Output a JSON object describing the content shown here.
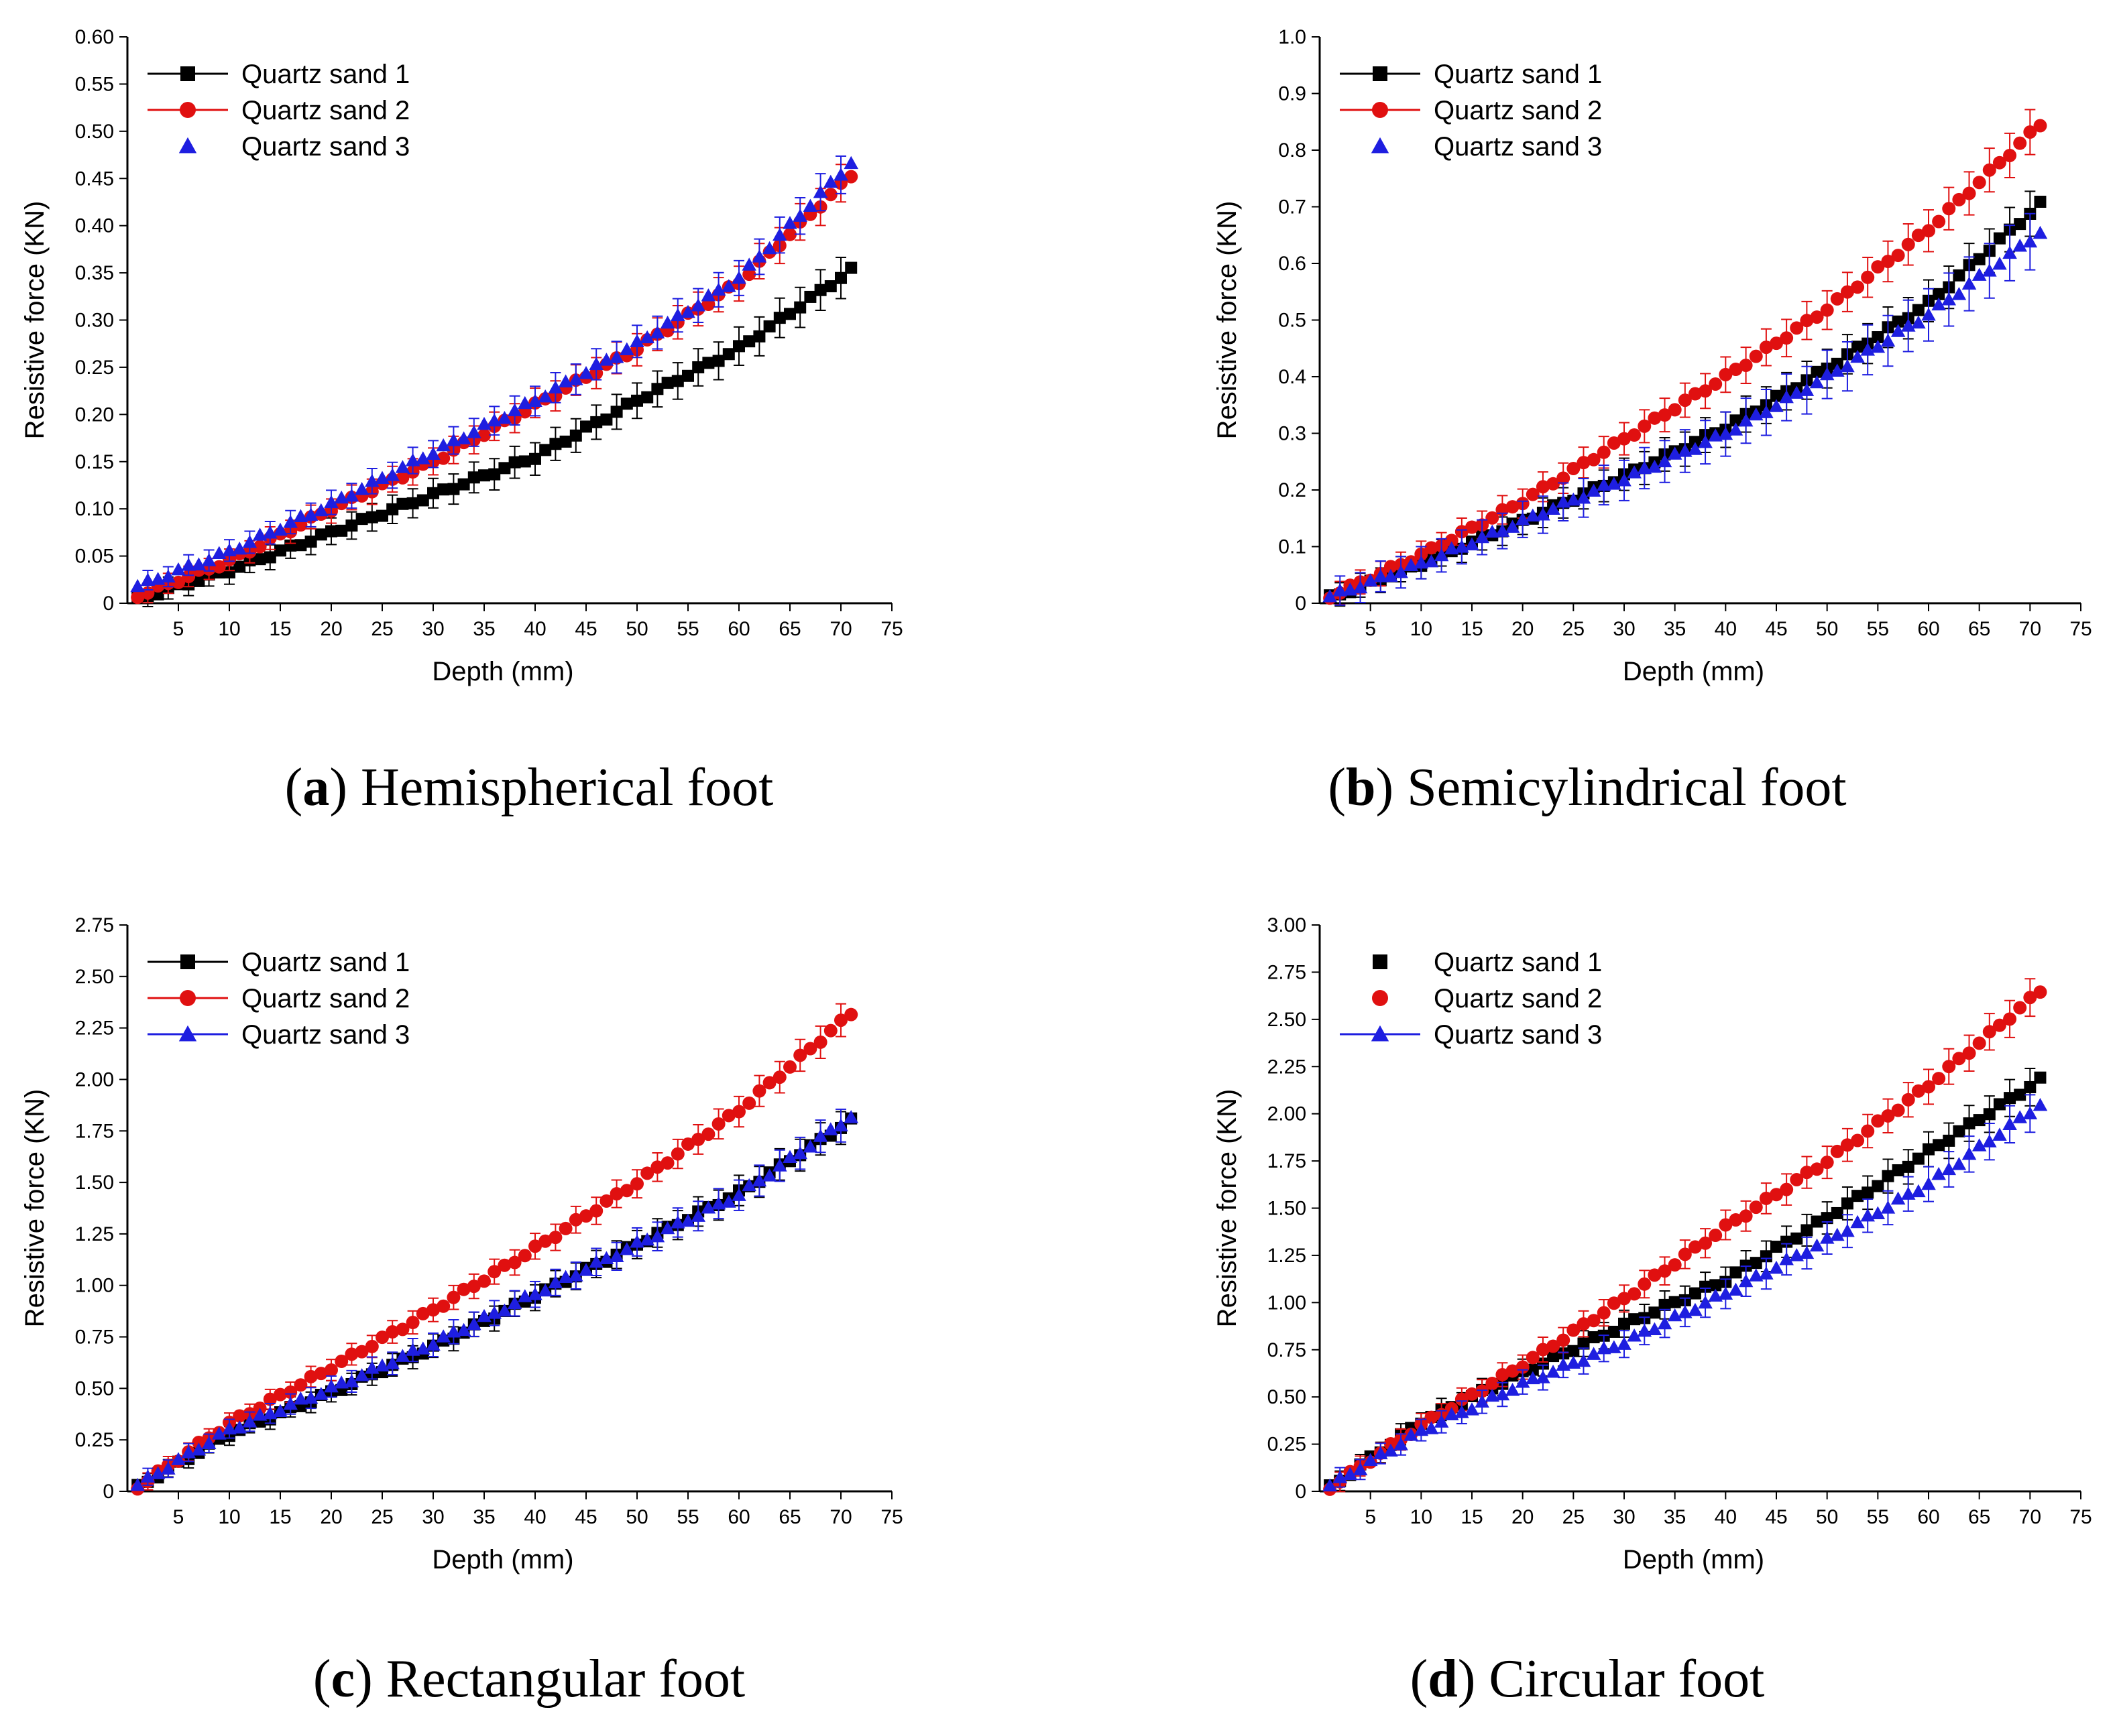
{
  "chart_data": [
    {
      "type": "scatter",
      "panel_letter": "a",
      "caption_text": "Hemispherical foot",
      "xlabel": "Depth (mm)",
      "ylabel": "Resistive force (KN)",
      "xlim": [
        0,
        75
      ],
      "ylim": [
        0,
        0.6
      ],
      "xticks": [
        5,
        10,
        15,
        20,
        25,
        30,
        35,
        40,
        45,
        50,
        55,
        60,
        65,
        70,
        75
      ],
      "xtick_labels": [
        "5",
        "10",
        "15",
        "20",
        "25",
        "30",
        "35",
        "40",
        "45",
        "50",
        "55",
        "60",
        "65",
        "70",
        "75"
      ],
      "yticks": [
        0,
        0.05,
        0.1,
        0.15,
        0.2,
        0.25,
        0.3,
        0.35,
        0.4,
        0.45,
        0.5,
        0.55,
        0.6
      ],
      "ytick_labels": [
        "0",
        "0.05",
        "0.10",
        "0.15",
        "0.20",
        "0.25",
        "0.30",
        "0.35",
        "0.40",
        "0.45",
        "0.50",
        "0.55",
        "0.60"
      ],
      "legend_position": "top-left",
      "x": [
        1,
        2,
        3,
        4,
        5,
        6,
        7,
        8,
        9,
        10,
        11,
        12,
        13,
        14,
        15,
        16,
        17,
        18,
        19,
        20,
        21,
        22,
        23,
        24,
        25,
        26,
        27,
        28,
        29,
        30,
        31,
        32,
        33,
        34,
        35,
        36,
        37,
        38,
        39,
        40,
        41,
        42,
        43,
        44,
        45,
        46,
        47,
        48,
        49,
        50,
        51,
        52,
        53,
        54,
        55,
        56,
        57,
        58,
        59,
        60,
        61,
        62,
        63,
        64,
        65,
        66,
        67,
        68,
        69,
        70,
        71
      ],
      "series": [
        {
          "name": "Quartz sand 1",
          "color": "#000000",
          "marker": "square",
          "legend_line": true,
          "anchors": [
            [
              1,
              0.005
            ],
            [
              10,
              0.035
            ],
            [
              20,
              0.075
            ],
            [
              30,
              0.115
            ],
            [
              40,
              0.155
            ],
            [
              50,
              0.215
            ],
            [
              60,
              0.27
            ],
            [
              71,
              0.353
            ]
          ],
          "error": 0.022
        },
        {
          "name": "Quartz sand 2",
          "color": "#e01010",
          "marker": "circle",
          "legend_line": true,
          "anchors": [
            [
              1,
              0.008
            ],
            [
              10,
              0.045
            ],
            [
              20,
              0.1
            ],
            [
              30,
              0.15
            ],
            [
              40,
              0.21
            ],
            [
              50,
              0.27
            ],
            [
              60,
              0.34
            ],
            [
              71,
              0.453
            ]
          ],
          "error": 0.02
        },
        {
          "name": "Quartz sand 3",
          "color": "#1e1ee0",
          "marker": "triangle",
          "legend_line": false,
          "anchors": [
            [
              1,
              0.018
            ],
            [
              10,
              0.055
            ],
            [
              20,
              0.105
            ],
            [
              30,
              0.16
            ],
            [
              40,
              0.215
            ],
            [
              50,
              0.275
            ],
            [
              60,
              0.345
            ],
            [
              71,
              0.467
            ]
          ],
          "error": 0.02
        }
      ]
    },
    {
      "type": "scatter",
      "panel_letter": "b",
      "caption_text": "Semicylindrical foot",
      "xlabel": "Depth (mm)",
      "ylabel": "Resistive force (KN)",
      "xlim": [
        0,
        75
      ],
      "ylim": [
        0,
        1.0
      ],
      "xticks": [
        5,
        10,
        15,
        20,
        25,
        30,
        35,
        40,
        45,
        50,
        55,
        60,
        65,
        70,
        75
      ],
      "xtick_labels": [
        "5",
        "10",
        "15",
        "20",
        "25",
        "30",
        "35",
        "40",
        "45",
        "50",
        "55",
        "60",
        "65",
        "70",
        "75"
      ],
      "yticks": [
        0,
        0.1,
        0.2,
        0.3,
        0.4,
        0.5,
        0.6,
        0.7,
        0.8,
        0.9,
        1.0
      ],
      "ytick_labels": [
        "0",
        "0.1",
        "0.2",
        "0.3",
        "0.4",
        "0.5",
        "0.6",
        "0.7",
        "0.8",
        "0.9",
        "1.0"
      ],
      "legend_position": "top-left",
      "x": [
        1,
        2,
        3,
        4,
        5,
        6,
        7,
        8,
        9,
        10,
        11,
        12,
        13,
        14,
        15,
        16,
        17,
        18,
        19,
        20,
        21,
        22,
        23,
        24,
        25,
        26,
        27,
        28,
        29,
        30,
        31,
        32,
        33,
        34,
        35,
        36,
        37,
        38,
        39,
        40,
        41,
        42,
        43,
        44,
        45,
        46,
        47,
        48,
        49,
        50,
        51,
        52,
        53,
        54,
        55,
        56,
        57,
        58,
        59,
        60,
        61,
        62,
        63,
        64,
        65,
        66,
        67,
        68,
        69,
        70,
        71
      ],
      "series": [
        {
          "name": "Quartz sand 1",
          "color": "#000000",
          "marker": "square",
          "legend_line": true,
          "anchors": [
            [
              1,
              0.01
            ],
            [
              10,
              0.07
            ],
            [
              20,
              0.145
            ],
            [
              30,
              0.225
            ],
            [
              40,
              0.31
            ],
            [
              50,
              0.415
            ],
            [
              60,
              0.53
            ],
            [
              71,
              0.705
            ]
          ],
          "error": 0.04
        },
        {
          "name": "Quartz sand 2",
          "color": "#e01010",
          "marker": "circle",
          "legend_line": true,
          "anchors": [
            [
              1,
              0.012
            ],
            [
              10,
              0.085
            ],
            [
              20,
              0.18
            ],
            [
              30,
              0.29
            ],
            [
              40,
              0.4
            ],
            [
              50,
              0.52
            ],
            [
              60,
              0.66
            ],
            [
              71,
              0.845
            ]
          ],
          "error": 0.04
        },
        {
          "name": "Quartz sand 3",
          "color": "#1e1ee0",
          "marker": "triangle",
          "legend_line": false,
          "anchors": [
            [
              1,
              0.012
            ],
            [
              10,
              0.07
            ],
            [
              20,
              0.145
            ],
            [
              30,
              0.22
            ],
            [
              40,
              0.3
            ],
            [
              50,
              0.4
            ],
            [
              60,
              0.51
            ],
            [
              71,
              0.655
            ]
          ],
          "error": 0.05
        }
      ]
    },
    {
      "type": "scatter",
      "panel_letter": "c",
      "caption_text": "Rectangular foot",
      "xlabel": "Depth (mm)",
      "ylabel": "Resistive force (KN)",
      "xlim": [
        0,
        75
      ],
      "ylim": [
        0,
        2.75
      ],
      "xticks": [
        5,
        10,
        15,
        20,
        25,
        30,
        35,
        40,
        45,
        50,
        55,
        60,
        65,
        70,
        75
      ],
      "xtick_labels": [
        "5",
        "10",
        "15",
        "20",
        "25",
        "30",
        "35",
        "40",
        "45",
        "50",
        "55",
        "60",
        "65",
        "70",
        "75"
      ],
      "yticks": [
        0,
        0.25,
        0.5,
        0.75,
        1.0,
        1.25,
        1.5,
        1.75,
        2.0,
        2.25,
        2.5,
        2.75
      ],
      "ytick_labels": [
        "0",
        "0.25",
        "0.50",
        "0.75",
        "1.00",
        "1.25",
        "1.50",
        "1.75",
        "2.00",
        "2.25",
        "2.50",
        "2.75"
      ],
      "legend_position": "top-left",
      "x": [
        1,
        2,
        3,
        4,
        5,
        6,
        7,
        8,
        9,
        10,
        11,
        12,
        13,
        14,
        15,
        16,
        17,
        18,
        19,
        20,
        21,
        22,
        23,
        24,
        25,
        26,
        27,
        28,
        29,
        30,
        31,
        32,
        33,
        34,
        35,
        36,
        37,
        38,
        39,
        40,
        41,
        42,
        43,
        44,
        45,
        46,
        47,
        48,
        49,
        50,
        51,
        52,
        53,
        54,
        55,
        56,
        57,
        58,
        59,
        60,
        61,
        62,
        63,
        64,
        65,
        66,
        67,
        68,
        69,
        70,
        71
      ],
      "series": [
        {
          "name": "Quartz sand 1",
          "color": "#000000",
          "marker": "square",
          "legend_line": true,
          "anchors": [
            [
              1,
              0.02
            ],
            [
              10,
              0.28
            ],
            [
              20,
              0.48
            ],
            [
              30,
              0.7
            ],
            [
              40,
              0.95
            ],
            [
              50,
              1.2
            ],
            [
              60,
              1.45
            ],
            [
              71,
              1.8
            ]
          ],
          "error": 0.08
        },
        {
          "name": "Quartz sand 2",
          "color": "#e01010",
          "marker": "circle",
          "legend_line": true,
          "anchors": [
            [
              1,
              0.02
            ],
            [
              10,
              0.33
            ],
            [
              20,
              0.6
            ],
            [
              30,
              0.88
            ],
            [
              40,
              1.18
            ],
            [
              50,
              1.5
            ],
            [
              60,
              1.85
            ],
            [
              71,
              2.32
            ]
          ],
          "error": 0.08
        },
        {
          "name": "Quartz sand 3",
          "color": "#1e1ee0",
          "marker": "triangle",
          "legend_line": true,
          "anchors": [
            [
              1,
              0.03
            ],
            [
              10,
              0.3
            ],
            [
              20,
              0.5
            ],
            [
              30,
              0.72
            ],
            [
              40,
              0.96
            ],
            [
              50,
              1.2
            ],
            [
              60,
              1.44
            ],
            [
              71,
              1.82
            ]
          ],
          "error": 0.08
        }
      ]
    },
    {
      "type": "scatter",
      "panel_letter": "d",
      "caption_text": "Circular foot",
      "xlabel": "Depth (mm)",
      "ylabel": "Resistive force (KN)",
      "xlim": [
        0,
        75
      ],
      "ylim": [
        0,
        3.0
      ],
      "xticks": [
        5,
        10,
        15,
        20,
        25,
        30,
        35,
        40,
        45,
        50,
        55,
        60,
        65,
        70,
        75
      ],
      "xtick_labels": [
        "5",
        "10",
        "15",
        "20",
        "25",
        "30",
        "35",
        "40",
        "45",
        "50",
        "55",
        "60",
        "65",
        "70",
        "75"
      ],
      "yticks": [
        0,
        0.25,
        0.5,
        0.75,
        1.0,
        1.25,
        1.5,
        1.75,
        2.0,
        2.25,
        2.5,
        2.75,
        3.0
      ],
      "ytick_labels": [
        "0",
        "0.25",
        "0.50",
        "0.75",
        "1.00",
        "1.25",
        "1.50",
        "1.75",
        "2.00",
        "2.25",
        "2.50",
        "2.75",
        "3.00"
      ],
      "legend_position": "top-left",
      "x": [
        1,
        2,
        3,
        4,
        5,
        6,
        7,
        8,
        9,
        10,
        11,
        12,
        13,
        14,
        15,
        16,
        17,
        18,
        19,
        20,
        21,
        22,
        23,
        24,
        25,
        26,
        27,
        28,
        29,
        30,
        31,
        32,
        33,
        34,
        35,
        36,
        37,
        38,
        39,
        40,
        41,
        42,
        43,
        44,
        45,
        46,
        47,
        48,
        49,
        50,
        51,
        52,
        53,
        54,
        55,
        56,
        57,
        58,
        59,
        60,
        61,
        62,
        63,
        64,
        65,
        66,
        67,
        68,
        69,
        70,
        71
      ],
      "series": [
        {
          "name": "Quartz sand 1",
          "color": "#000000",
          "marker": "square",
          "legend_line": false,
          "anchors": [
            [
              1,
              0.02
            ],
            [
              10,
              0.37
            ],
            [
              20,
              0.63
            ],
            [
              30,
              0.88
            ],
            [
              40,
              1.12
            ],
            [
              50,
              1.45
            ],
            [
              60,
              1.8
            ],
            [
              71,
              2.18
            ]
          ],
          "error": 0.1
        },
        {
          "name": "Quartz sand 2",
          "color": "#e01010",
          "marker": "circle",
          "legend_line": false,
          "anchors": [
            [
              1,
              0.02
            ],
            [
              10,
              0.35
            ],
            [
              20,
              0.67
            ],
            [
              30,
              1.02
            ],
            [
              40,
              1.4
            ],
            [
              50,
              1.75
            ],
            [
              60,
              2.15
            ],
            [
              71,
              2.65
            ]
          ],
          "error": 0.1
        },
        {
          "name": "Quartz sand 3",
          "color": "#1e1ee0",
          "marker": "triangle",
          "legend_line": true,
          "anchors": [
            [
              1,
              0.03
            ],
            [
              10,
              0.32
            ],
            [
              20,
              0.57
            ],
            [
              30,
              0.79
            ],
            [
              40,
              1.05
            ],
            [
              50,
              1.33
            ],
            [
              60,
              1.63
            ],
            [
              71,
              2.05
            ]
          ],
          "error": 0.1
        }
      ]
    }
  ]
}
